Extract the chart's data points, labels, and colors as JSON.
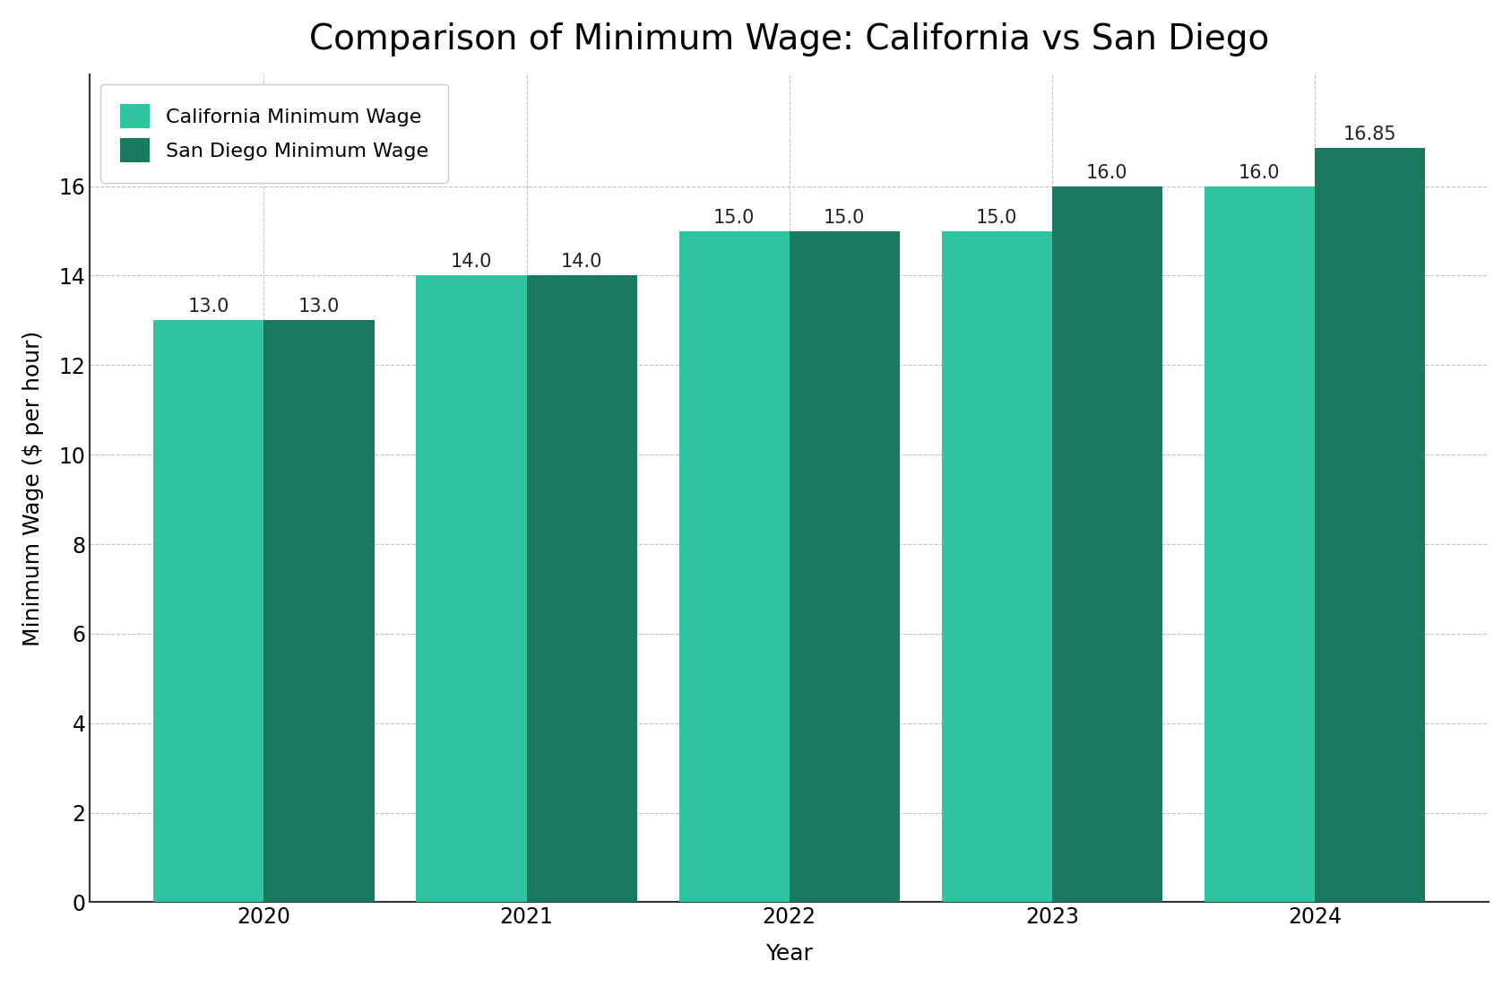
{
  "title": "Comparison of Minimum Wage: California vs San Diego",
  "xlabel": "Year",
  "ylabel": "Minimum Wage ($ per hour)",
  "years": [
    2020,
    2021,
    2022,
    2023,
    2024
  ],
  "california_wages": [
    13.0,
    14.0,
    15.0,
    15.0,
    16.0
  ],
  "san_diego_wages": [
    13.0,
    14.0,
    15.0,
    16.0,
    16.85
  ],
  "california_color": "#2ec4a0",
  "san_diego_color": "#1a7a5e",
  "background_color": "#ffffff",
  "title_fontsize": 28,
  "label_fontsize": 18,
  "tick_fontsize": 17,
  "legend_fontsize": 16,
  "bar_width": 0.42,
  "ylim": [
    0,
    18.5
  ],
  "yticks": [
    0,
    2,
    4,
    6,
    8,
    10,
    12,
    14,
    16
  ],
  "legend_labels": [
    "California Minimum Wage",
    "San Diego Minimum Wage"
  ],
  "value_label_fontsize": 15
}
